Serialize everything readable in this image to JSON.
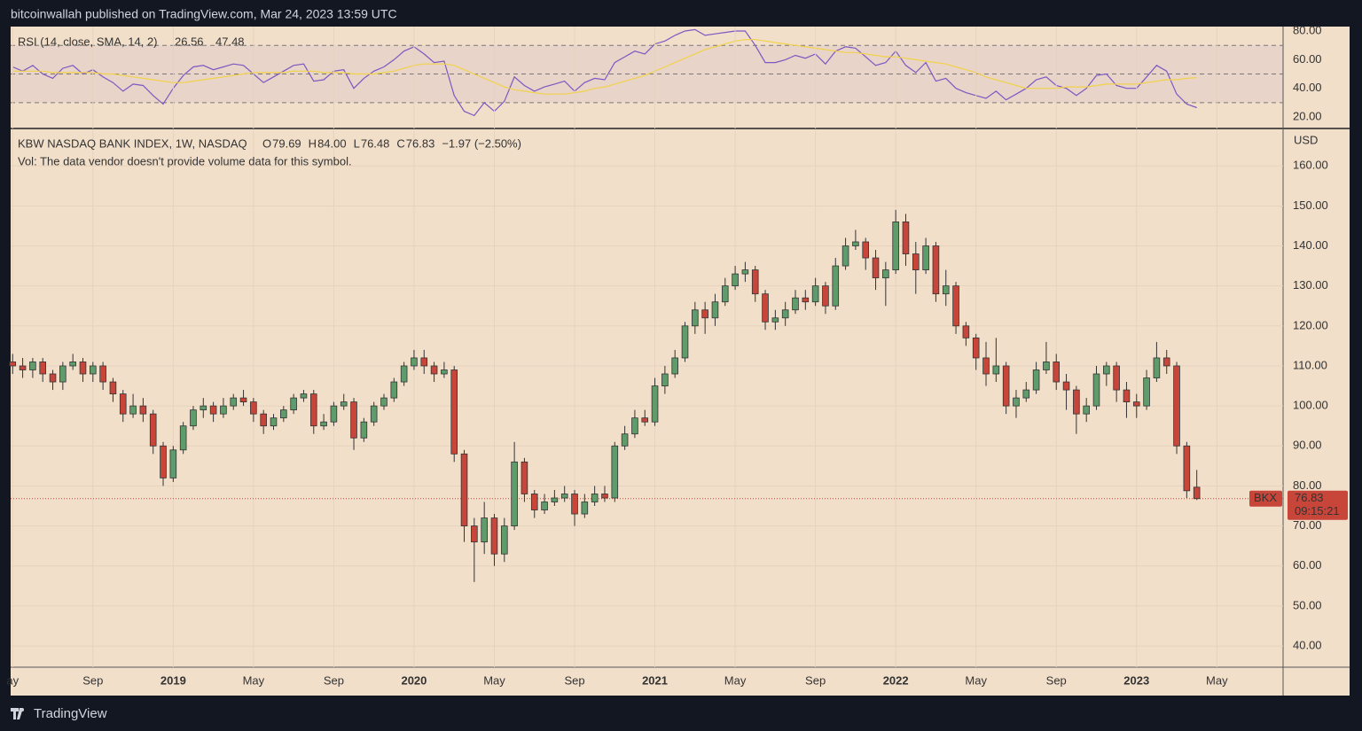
{
  "header": {
    "published": "bitcoinwallah published on TradingView.com, Mar 24, 2023 13:59 UTC"
  },
  "footer": {
    "brand": "TradingView"
  },
  "chart_data": [
    {
      "type": "line",
      "title": "RSI (14, close, SMA, 14, 2)",
      "series": [
        {
          "color": "#7e57c2",
          "values": [
            55,
            52,
            56,
            50,
            47,
            54,
            56,
            50,
            53,
            48,
            44,
            38,
            43,
            42,
            35,
            29,
            40,
            49,
            55,
            56,
            53,
            55,
            57,
            56,
            50,
            44,
            48,
            52,
            56,
            57,
            45,
            46,
            52,
            53,
            40,
            47,
            52,
            55,
            60,
            66,
            69,
            64,
            58,
            59,
            35,
            24,
            21,
            30,
            24,
            31,
            48,
            42,
            38,
            41,
            43,
            45,
            38,
            44,
            47,
            46,
            58,
            62,
            66,
            64,
            71,
            73,
            77,
            80,
            81,
            77,
            78,
            79,
            80,
            80,
            70,
            58,
            58,
            60,
            63,
            61,
            64,
            57,
            66,
            69,
            68,
            62,
            56,
            58,
            66,
            56,
            51,
            58,
            45,
            47,
            40,
            37,
            35,
            33,
            38,
            32,
            36,
            40,
            46,
            48,
            42,
            40,
            35,
            40,
            49,
            50,
            42,
            40,
            40,
            48,
            56,
            52,
            36,
            29,
            26.56
          ]
        },
        {
          "color": "#f0d24a",
          "values": [
            52,
            52,
            52,
            52,
            51,
            51,
            51,
            51,
            51,
            50,
            50,
            49,
            48,
            47,
            46,
            45,
            44,
            44,
            45,
            46,
            47,
            48,
            49,
            50,
            51,
            51,
            51,
            51,
            52,
            52,
            52,
            51,
            51,
            51,
            50,
            50,
            50,
            51,
            52,
            54,
            56,
            57,
            57,
            57,
            56,
            53,
            50,
            47,
            44,
            41,
            39,
            38,
            37,
            36,
            36,
            36,
            37,
            38,
            40,
            41,
            43,
            45,
            47,
            49,
            52,
            55,
            58,
            61,
            64,
            67,
            69,
            71,
            73,
            74,
            74,
            73,
            72,
            71,
            70,
            69,
            68,
            67,
            66,
            65,
            65,
            64,
            63,
            62,
            62,
            61,
            60,
            59,
            58,
            57,
            55,
            53,
            51,
            48,
            46,
            44,
            42,
            40,
            40,
            40,
            40,
            41,
            41,
            41,
            42,
            43,
            43,
            43,
            43,
            44,
            45,
            46,
            46,
            47,
            47.48
          ]
        }
      ],
      "levels": [
        30,
        50,
        70
      ],
      "xlim": [
        -0.2,
        126.6
      ],
      "ylim": [
        12,
        83.1
      ],
      "yticks": [
        {
          "value": 20,
          "label": "20.00"
        },
        {
          "value": 40,
          "label": "40.00"
        },
        {
          "value": 60,
          "label": "60.00"
        },
        {
          "value": 80,
          "label": "80.00"
        }
      ]
    },
    {
      "type": "candlestick",
      "title": "KBW NASDAQ BANK INDEX, 1W, NASDAQ",
      "legend": [
        {
          "key": "O",
          "text": "79.69"
        },
        {
          "key": "H",
          "text": "84.00"
        },
        {
          "key": "L",
          "text": "76.48"
        },
        {
          "key": "C",
          "text": "76.83"
        }
      ],
      "change": "−1.97 (−2.50%)",
      "volume_text": "Vol: The data vendor doesn't provide volume data for this symbol.",
      "currency": "USD",
      "symbol": "BKX",
      "last_label": "76.83",
      "countdown": "09:15:21",
      "up_color": "#5e9c6c",
      "down_color": "#c8453a",
      "candles": [
        [
          111,
          113,
          108,
          110
        ],
        [
          110,
          112,
          107,
          109
        ],
        [
          109,
          112,
          107,
          111
        ],
        [
          111,
          112,
          106,
          108
        ],
        [
          108,
          109,
          104,
          106
        ],
        [
          106,
          111,
          104,
          110
        ],
        [
          110,
          113,
          109,
          111
        ],
        [
          111,
          112,
          106,
          108
        ],
        [
          108,
          111,
          106,
          110
        ],
        [
          110,
          111,
          104,
          106
        ],
        [
          106,
          107,
          101,
          103
        ],
        [
          103,
          104,
          96,
          98
        ],
        [
          98,
          103,
          97,
          100
        ],
        [
          100,
          102,
          96,
          98
        ],
        [
          98,
          99,
          88,
          90
        ],
        [
          90,
          91,
          80,
          82
        ],
        [
          82,
          90,
          81,
          89
        ],
        [
          89,
          96,
          88,
          95
        ],
        [
          95,
          100,
          94,
          99
        ],
        [
          99,
          102,
          97,
          100
        ],
        [
          100,
          101,
          96,
          98
        ],
        [
          98,
          102,
          97,
          100
        ],
        [
          100,
          103,
          99,
          102
        ],
        [
          102,
          104,
          100,
          101
        ],
        [
          101,
          102,
          96,
          98
        ],
        [
          98,
          99,
          93,
          95
        ],
        [
          95,
          98,
          94,
          97
        ],
        [
          97,
          100,
          96,
          99
        ],
        [
          99,
          103,
          98,
          102
        ],
        [
          102,
          104,
          101,
          103
        ],
        [
          103,
          104,
          93,
          95
        ],
        [
          95,
          98,
          94,
          96
        ],
        [
          96,
          101,
          95,
          100
        ],
        [
          100,
          103,
          99,
          101
        ],
        [
          101,
          102,
          89,
          92
        ],
        [
          92,
          97,
          91,
          96
        ],
        [
          96,
          101,
          95,
          100
        ],
        [
          100,
          103,
          99,
          102
        ],
        [
          102,
          107,
          101,
          106
        ],
        [
          106,
          111,
          105,
          110
        ],
        [
          110,
          114,
          109,
          112
        ],
        [
          112,
          114,
          108,
          110
        ],
        [
          110,
          111,
          106,
          108
        ],
        [
          108,
          111,
          107,
          109
        ],
        [
          109,
          110,
          86,
          88
        ],
        [
          88,
          89,
          66,
          70
        ],
        [
          70,
          72,
          56,
          66
        ],
        [
          66,
          76,
          63,
          72
        ],
        [
          72,
          73,
          60,
          63
        ],
        [
          63,
          72,
          61,
          70
        ],
        [
          70,
          91,
          69,
          86
        ],
        [
          86,
          87,
          76,
          78
        ],
        [
          78,
          79,
          72,
          74
        ],
        [
          74,
          78,
          73,
          76
        ],
        [
          76,
          79,
          75,
          77
        ],
        [
          77,
          80,
          76,
          78
        ],
        [
          78,
          79,
          70,
          73
        ],
        [
          73,
          78,
          72,
          76
        ],
        [
          76,
          80,
          75,
          78
        ],
        [
          78,
          80,
          76,
          77
        ],
        [
          77,
          91,
          76,
          90
        ],
        [
          90,
          95,
          89,
          93
        ],
        [
          93,
          99,
          92,
          97
        ],
        [
          97,
          99,
          95,
          96
        ],
        [
          96,
          107,
          95,
          105
        ],
        [
          105,
          110,
          103,
          108
        ],
        [
          108,
          114,
          107,
          112
        ],
        [
          112,
          121,
          111,
          120
        ],
        [
          120,
          126,
          118,
          124
        ],
        [
          124,
          126,
          118,
          122
        ],
        [
          122,
          128,
          120,
          126
        ],
        [
          126,
          132,
          125,
          130
        ],
        [
          130,
          135,
          129,
          133
        ],
        [
          133,
          136,
          131,
          134
        ],
        [
          134,
          135,
          126,
          128
        ],
        [
          128,
          129,
          119,
          121
        ],
        [
          121,
          124,
          119,
          122
        ],
        [
          122,
          126,
          120,
          124
        ],
        [
          124,
          129,
          123,
          127
        ],
        [
          127,
          129,
          124,
          126
        ],
        [
          126,
          132,
          125,
          130
        ],
        [
          130,
          131,
          123,
          125
        ],
        [
          125,
          137,
          124,
          135
        ],
        [
          135,
          142,
          134,
          140
        ],
        [
          140,
          144,
          139,
          141
        ],
        [
          141,
          142,
          134,
          137
        ],
        [
          137,
          139,
          129,
          132
        ],
        [
          132,
          136,
          125,
          134
        ],
        [
          134,
          149,
          133,
          146
        ],
        [
          146,
          148,
          135,
          138
        ],
        [
          138,
          141,
          128,
          134
        ],
        [
          134,
          142,
          133,
          140
        ],
        [
          140,
          141,
          126,
          128
        ],
        [
          128,
          134,
          125,
          130
        ],
        [
          130,
          131,
          118,
          120
        ],
        [
          120,
          121,
          115,
          117
        ],
        [
          117,
          118,
          109,
          112
        ],
        [
          112,
          116,
          105,
          108
        ],
        [
          108,
          117,
          106,
          110
        ],
        [
          110,
          111,
          98,
          100
        ],
        [
          100,
          104,
          97,
          102
        ],
        [
          102,
          106,
          101,
          104
        ],
        [
          104,
          111,
          103,
          109
        ],
        [
          109,
          116,
          108,
          111
        ],
        [
          111,
          113,
          104,
          106
        ],
        [
          106,
          108,
          99,
          104
        ],
        [
          104,
          105,
          93,
          98
        ],
        [
          98,
          102,
          96,
          100
        ],
        [
          100,
          110,
          99,
          108
        ],
        [
          108,
          111,
          105,
          110
        ],
        [
          110,
          111,
          101,
          104
        ],
        [
          104,
          106,
          97,
          101
        ],
        [
          101,
          103,
          97,
          100
        ],
        [
          100,
          109,
          99,
          107
        ],
        [
          107,
          116,
          106,
          112
        ],
        [
          112,
          114,
          108,
          110
        ],
        [
          110,
          111,
          88,
          90
        ],
        [
          90,
          91,
          77,
          78.8
        ],
        [
          79.69,
          84,
          76.48,
          76.83
        ]
      ],
      "xlim": [
        -0.2,
        126.6
      ],
      "xticks": [
        {
          "value": 0,
          "label": "ay"
        },
        {
          "value": 8,
          "label": "Sep"
        },
        {
          "value": 16,
          "label": "2019",
          "strong": true
        },
        {
          "value": 24,
          "label": "May"
        },
        {
          "value": 32,
          "label": "Sep"
        },
        {
          "value": 40,
          "label": "2020",
          "strong": true
        },
        {
          "value": 48,
          "label": "May"
        },
        {
          "value": 56,
          "label": "Sep"
        },
        {
          "value": 64,
          "label": "2021",
          "strong": true
        },
        {
          "value": 72,
          "label": "May"
        },
        {
          "value": 80,
          "label": "Sep"
        },
        {
          "value": 88,
          "label": "2022",
          "strong": true
        },
        {
          "value": 96,
          "label": "May"
        },
        {
          "value": 104,
          "label": "Sep"
        },
        {
          "value": 112,
          "label": "2023",
          "strong": true
        },
        {
          "value": 120,
          "label": "May"
        }
      ],
      "ylim": [
        34.7,
        168.9
      ],
      "yticks": [
        {
          "value": 40,
          "label": "40.00"
        },
        {
          "value": 50,
          "label": "50.00"
        },
        {
          "value": 60,
          "label": "60.00"
        },
        {
          "value": 70,
          "label": "70.00"
        },
        {
          "value": 80,
          "label": "80.00"
        },
        {
          "value": 90,
          "label": "90.00"
        },
        {
          "value": 100,
          "label": "100.00"
        },
        {
          "value": 110,
          "label": "110.00"
        },
        {
          "value": 120,
          "label": "120.00"
        },
        {
          "value": 130,
          "label": "130.00"
        },
        {
          "value": 140,
          "label": "140.00"
        },
        {
          "value": 150,
          "label": "150.00"
        },
        {
          "value": 160,
          "label": "160.00"
        }
      ],
      "grid": true
    }
  ]
}
